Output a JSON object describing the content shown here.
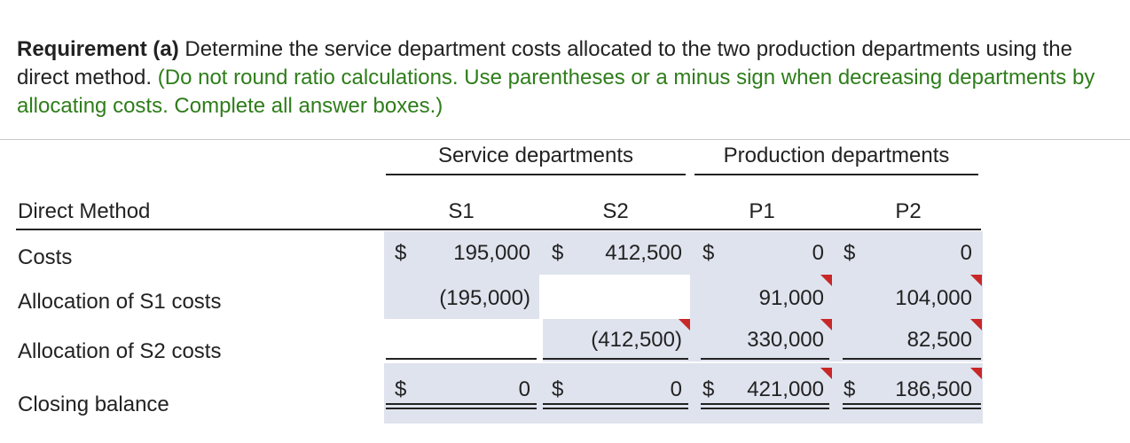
{
  "requirement": {
    "label": "Requirement (a)",
    "text": " Determine the service department costs allocated to the two production departments using the direct method. ",
    "hint": "(Do not round ratio calculations. Use parentheses or a minus sign when decreasing departments by allocating costs. Complete all answer boxes.)"
  },
  "table": {
    "group_service": "Service departments",
    "group_production": "Production departments",
    "row_header": "Direct Method",
    "columns": [
      "S1",
      "S2",
      "P1",
      "P2"
    ],
    "currency": "$",
    "rows": [
      {
        "label": "Costs",
        "s1": "195,000",
        "s2": "412,500",
        "p1": "0",
        "p2": "0"
      },
      {
        "label": "Allocation of S1 costs",
        "s1": "(195,000)",
        "s2": "",
        "p1": "91,000",
        "p2": "104,000"
      },
      {
        "label": "Allocation of S2 costs",
        "s1": "",
        "s2": "(412,500)",
        "p1": "330,000",
        "p2": "82,500"
      },
      {
        "label": "Closing balance",
        "s1": "0",
        "s2": "0",
        "p1": "421,000",
        "p2": "186,500"
      }
    ],
    "colors": {
      "shade": "#dfe3ee",
      "hint_green": "#2e7d1a",
      "flag_red": "#c82828"
    }
  }
}
